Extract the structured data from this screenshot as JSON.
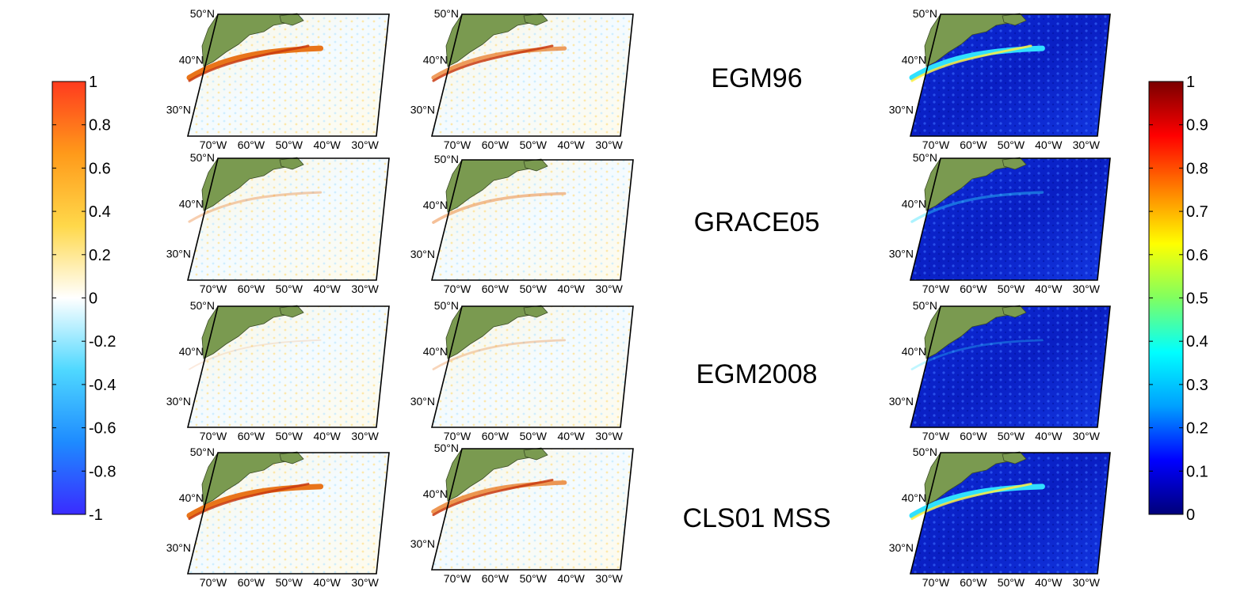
{
  "models": [
    "EGM96",
    "GRACE05",
    "EGM2008",
    "CLS01 MSS"
  ],
  "lat_labels": [
    "50°N",
    "40°N",
    "30°N"
  ],
  "lon_labels": [
    "70°W",
    "60°W",
    "50°W",
    "40°W",
    "30°W"
  ],
  "diverging_colorbar": {
    "ticks": [
      "1",
      "0.8",
      "0.6",
      "0.4",
      "0.2",
      "0",
      "-0.2",
      "-0.4",
      "-0.6",
      "-0.8",
      "-1"
    ],
    "colors": [
      "#3a2bff",
      "#1e8bff",
      "#4fd8ff",
      "#ffffff",
      "#ffd84a",
      "#ff9a1a",
      "#ff3b1e"
    ]
  },
  "sequential_colorbar": {
    "ticks": [
      "1",
      "0.9",
      "0.8",
      "0.7",
      "0.6",
      "0.5",
      "0.4",
      "0.3",
      "0.2",
      "0.1",
      "0"
    ],
    "colors": [
      "#00007a",
      "#0000ff",
      "#00a0ff",
      "#00ffff",
      "#80ff60",
      "#ffff00",
      "#ff8000",
      "#ff0000",
      "#7a0000"
    ]
  },
  "land_color": "#7a9a50"
}
